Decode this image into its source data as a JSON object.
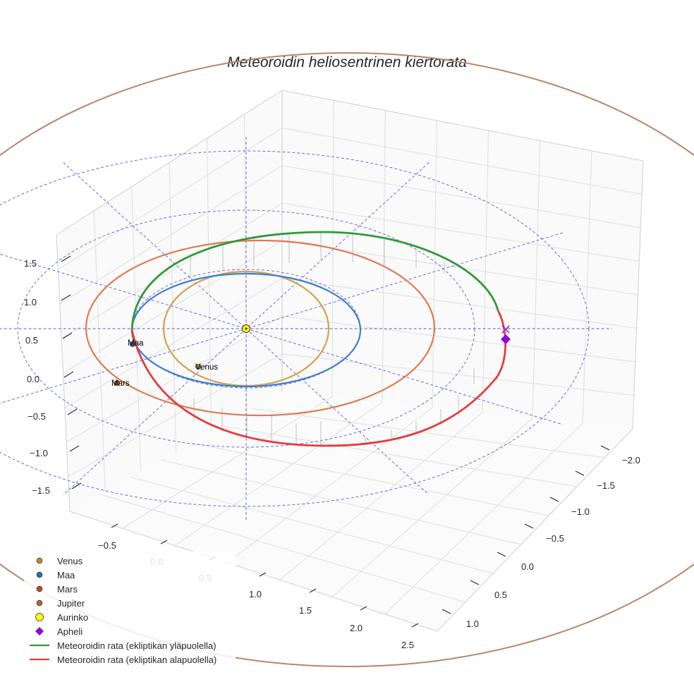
{
  "chart_data": {
    "type": "line",
    "projection": "3d",
    "title": "Meteoroidin heliosentrinen kiertorata",
    "xlabel": "",
    "ylabel": "",
    "zlabel": "",
    "axis_x_ticks": [
      "−0.5",
      "0.0",
      "0.5",
      "1.0",
      "1.5",
      "2.0",
      "2.5"
    ],
    "axis_y_ticks": [
      "−2.0",
      "−1.5",
      "−1.0",
      "−0.5",
      "0.0",
      "0.5",
      "1.0"
    ],
    "axis_z_ticks": [
      "1.5",
      "1.0",
      "0.5",
      "0.0",
      "−0.5",
      "−1.0",
      "−1.5"
    ],
    "grid": true,
    "legend_position": "bottom-left",
    "planets": [
      {
        "name": "Venus",
        "label": "Venus",
        "orbit_radius_au": 0.72,
        "color": "#d4a04a"
      },
      {
        "name": "Maa",
        "label": "Maa",
        "orbit_radius_au": 1.0,
        "color": "#3a7fd0"
      },
      {
        "name": "Mars",
        "label": "Mars",
        "orbit_radius_au": 1.52,
        "color": "#e07a52"
      },
      {
        "name": "Jupiter",
        "label": "",
        "orbit_radius_au": 5.2,
        "color": "#b5866a"
      }
    ],
    "reference_circles_au": [
      1,
      2,
      3
    ],
    "meteoroid_orbit": {
      "aphelion_au": 2.2,
      "perihelion_au": 1.0,
      "above_color": "#2e9a38",
      "below_color": "#e43c3c"
    },
    "legend": [
      {
        "label": "Venus",
        "marker": "circle",
        "color": "#d08a2c"
      },
      {
        "label": "Maa",
        "marker": "circle",
        "color": "#2a6fb0"
      },
      {
        "label": "Mars",
        "marker": "circle",
        "color": "#c64a1c"
      },
      {
        "label": "Jupiter",
        "marker": "circle",
        "color": "#b5663a"
      },
      {
        "label": "Aurinko",
        "marker": "circle",
        "color": "#ffff00"
      },
      {
        "label": "Apheli",
        "marker": "diamond",
        "color": "#9400d3"
      },
      {
        "label": "Meteoroidin rata (ekliptikan yläpuolella)",
        "marker": "line",
        "color": "#2e9a38"
      },
      {
        "label": "Meteoroidin rata (ekliptikan alapuolella)",
        "marker": "line",
        "color": "#e43c3c"
      }
    ]
  }
}
